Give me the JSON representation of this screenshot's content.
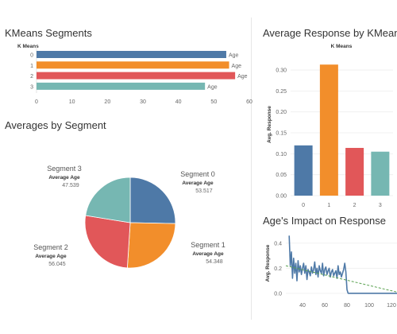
{
  "chart_data": [
    {
      "type": "bar",
      "orientation": "horizontal",
      "title": "KMeans Segments",
      "row_header": "K Means",
      "categories": [
        "0",
        "1",
        "2",
        "3"
      ],
      "values": [
        53.5,
        54.3,
        56.0,
        47.5
      ],
      "bar_label": "Age",
      "xticks": [
        "0",
        "10",
        "20",
        "30",
        "40",
        "50",
        "60"
      ],
      "xlim": [
        0,
        60
      ],
      "colors": [
        "#4e79a7",
        "#f28e2b",
        "#e15759",
        "#76b7b2"
      ]
    },
    {
      "type": "pie",
      "title": "Averages by Segment",
      "slices": [
        {
          "name": "Segment 0",
          "sub": "Average Age",
          "value": 53.517,
          "value_text": "53.517",
          "color": "#4e79a7"
        },
        {
          "name": "Segment 1",
          "sub": "Average Age",
          "value": 54.348,
          "value_text": "54.348",
          "color": "#f28e2b"
        },
        {
          "name": "Segment 2",
          "sub": "Average Age",
          "value": 56.045,
          "value_text": "56.045",
          "color": "#e15759"
        },
        {
          "name": "Segment 3",
          "sub": "Average Age",
          "value": 47.539,
          "value_text": "47.539",
          "color": "#76b7b2"
        }
      ]
    },
    {
      "type": "bar",
      "title": "Average Response by KMeans",
      "column_header": "K Means",
      "ylabel": "Avg. Response",
      "categories": [
        "0",
        "1",
        "2",
        "3"
      ],
      "values": [
        0.12,
        0.313,
        0.114,
        0.105
      ],
      "yticks": [
        "0.00",
        "0.05",
        "0.10",
        "0.15",
        "0.20",
        "0.25",
        "0.30"
      ],
      "ylim": [
        0,
        0.34
      ],
      "colors": [
        "#4e79a7",
        "#f28e2b",
        "#e15759",
        "#76b7b2"
      ]
    },
    {
      "type": "line",
      "title": "Age's Impact on Response",
      "ylabel": "Avg. Response",
      "xlim": [
        25,
        125
      ],
      "ylim": [
        -0.02,
        0.5
      ],
      "xticks": [
        "40",
        "60",
        "80",
        "100",
        "120"
      ],
      "yticks": [
        "0.0",
        "0.2",
        "0.4"
      ],
      "x": [
        28,
        29,
        30,
        31,
        32,
        33,
        34,
        35,
        36,
        37,
        38,
        39,
        40,
        41,
        42,
        43,
        44,
        45,
        46,
        47,
        48,
        49,
        50,
        51,
        52,
        53,
        54,
        55,
        56,
        57,
        58,
        59,
        60,
        61,
        62,
        63,
        64,
        65,
        66,
        67,
        68,
        69,
        70,
        71,
        72,
        73,
        74,
        75,
        76,
        77,
        78,
        79,
        80,
        81,
        82,
        83,
        84,
        85,
        86,
        87,
        88,
        89,
        90,
        91,
        92,
        93,
        94,
        95,
        96,
        97,
        98,
        99,
        100,
        101,
        102,
        103,
        104,
        105,
        106,
        107,
        108,
        109,
        110,
        111,
        112,
        113,
        114,
        115,
        116,
        117,
        118,
        119,
        120,
        121,
        122,
        123,
        124,
        125
      ],
      "y": [
        0.46,
        0.22,
        0.33,
        0.12,
        0.28,
        0.16,
        0.24,
        0.1,
        0.26,
        0.17,
        0.22,
        0.15,
        0.2,
        0.24,
        0.16,
        0.22,
        0.11,
        0.19,
        0.17,
        0.14,
        0.21,
        0.16,
        0.19,
        0.25,
        0.15,
        0.2,
        0.13,
        0.22,
        0.18,
        0.16,
        0.24,
        0.14,
        0.19,
        0.21,
        0.15,
        0.18,
        0.2,
        0.13,
        0.17,
        0.19,
        0.14,
        0.16,
        0.18,
        0.12,
        0.22,
        0.15,
        0.17,
        0.13,
        0.16,
        0.19,
        0.24,
        0.17,
        0.03,
        0.0,
        0.0,
        0.0,
        0.0,
        0.0,
        0.0,
        0.0,
        0.0,
        0.0,
        0.0,
        0.0,
        0.0,
        0.0,
        0.0,
        0.0,
        0.0,
        0.0,
        0.0,
        0.0,
        0.0,
        0.0,
        0.0,
        0.0,
        0.0,
        0.0,
        0.0,
        0.0,
        0.0,
        0.0,
        0.0,
        0.0,
        0.0,
        0.0,
        0.0,
        0.0,
        0.0,
        0.0,
        0.0,
        0.0,
        0.0,
        0.0,
        0.0,
        0.0,
        0.0,
        0.0
      ],
      "trend": {
        "x": [
          25,
          125
        ],
        "y": [
          0.22,
          0.01
        ],
        "color": "#59a14f",
        "style": "dashed"
      },
      "color": "#4e79a7"
    }
  ]
}
